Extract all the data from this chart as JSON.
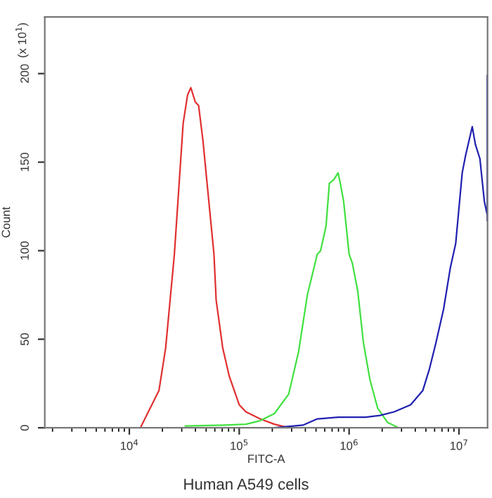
{
  "chart_data": {
    "type": "line",
    "xlabel": "FITC-A",
    "ylabel": "Count",
    "log": "x",
    "grid": false,
    "marker": "none",
    "line_style": "solid",
    "xlim": [
      1700,
      18200000
    ],
    "ylim": [
      0,
      232
    ],
    "xticks": [
      {
        "value": 10000,
        "label": "10$^{4}$"
      },
      {
        "value": 100000,
        "label": "10$^{5}$"
      },
      {
        "value": 1000000,
        "label": "10$^{6}$"
      },
      {
        "value": 10000000,
        "label": "10$^{7}$"
      }
    ],
    "yticks": [
      0,
      50,
      100,
      150,
      200
    ],
    "annotations": [
      "(x 10$^{1}$)",
      "Human A549 cells"
    ],
    "series": [
      {
        "color": "#e03030",
        "x": [
          12600,
          18600,
          21400,
          25700,
          30900,
          33900,
          36300,
          39800,
          42700,
          46800,
          52500,
          58900,
          61700,
          70800,
          81300,
          100000,
          115000,
          155000,
          209000,
          282000
        ],
        "values": [
          0,
          21,
          45,
          98,
          172,
          188,
          192,
          184,
          182,
          162,
          130,
          98,
          72,
          45,
          29,
          13,
          9,
          5,
          2,
          0
        ]
      },
      {
        "color": "#40e040",
        "x": [
          32400,
          74100,
          115000,
          155000,
          209000,
          282000,
          347000,
          417000,
          513000,
          550000,
          617000,
          661000,
          724000,
          794000,
          832000,
          891000,
          1000000,
          1070000,
          1200000,
          1350000,
          1550000,
          1820000,
          2240000,
          2820000
        ],
        "values": [
          1,
          1.5,
          2,
          4,
          8,
          19,
          43,
          75,
          98,
          100,
          114,
          138,
          140,
          144,
          138,
          128,
          98,
          93,
          77,
          48,
          27,
          11,
          3,
          0
        ]
      },
      {
        "color": "#2020b0",
        "x": [
          209000,
          380000,
          513000,
          794000,
          1410000,
          1910000,
          2570000,
          3630000,
          4680000,
          5370000,
          6170000,
          7240000,
          8320000,
          9330000,
          10700000,
          11500000,
          13200000,
          14100000,
          15500000,
          17000000,
          18100000,
          18100000,
          18100000
        ],
        "values": [
          0,
          1.5,
          5,
          6,
          6,
          7,
          9,
          13,
          21,
          33,
          48,
          67,
          90,
          104,
          144,
          154,
          170,
          160,
          152,
          128,
          120,
          199,
          117
        ]
      }
    ]
  }
}
